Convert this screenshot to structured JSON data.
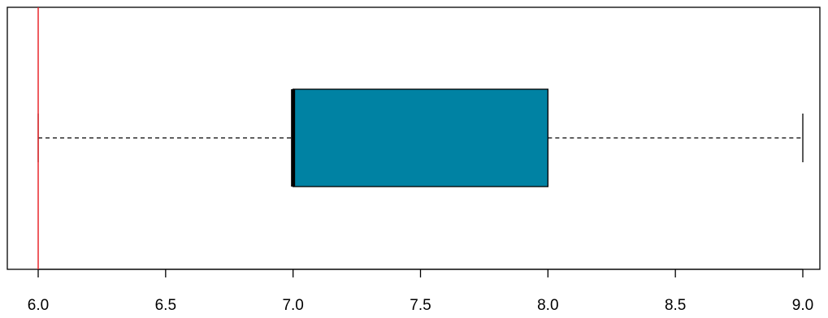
{
  "chart_data": {
    "type": "boxplot",
    "orientation": "horizontal",
    "xlim": [
      6.0,
      9.0
    ],
    "x_ticks": [
      6.0,
      6.5,
      7.0,
      7.5,
      8.0,
      8.5,
      9.0
    ],
    "x_tick_labels": [
      "6.0",
      "6.5",
      "7.0",
      "7.5",
      "8.0",
      "8.5",
      "9.0"
    ],
    "box": {
      "whisker_low": 6.0,
      "q1": 7.0,
      "median": 7.0,
      "q3": 8.0,
      "whisker_high": 9.0
    },
    "reference_line": {
      "x": 6.0,
      "color": "#e8262b"
    },
    "colors": {
      "box_fill": "#0082a3",
      "frame": "#000000"
    },
    "grid": false
  }
}
